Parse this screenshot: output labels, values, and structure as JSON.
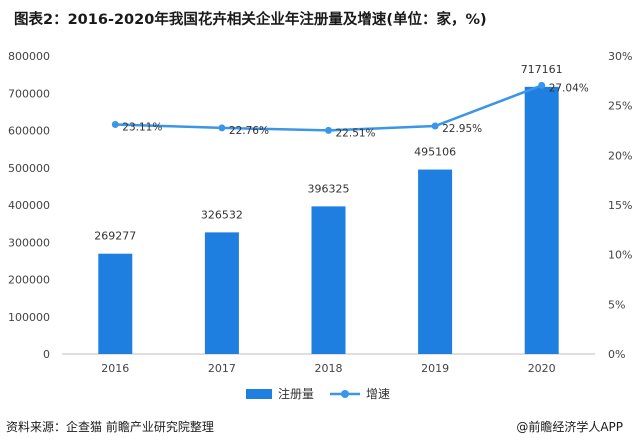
{
  "chart_data": {
    "type": "bar",
    "title": "图表2：2016-2020年我国花卉相关企业年注册量及增速(单位：家，%)",
    "categories": [
      "2016",
      "2017",
      "2018",
      "2019",
      "2020"
    ],
    "series": [
      {
        "name": "注册量",
        "type": "bar",
        "axis": "left",
        "values": [
          269277,
          326532,
          396325,
          495106,
          717161
        ],
        "labels": [
          "269277",
          "326532",
          "396325",
          "495106",
          "717161"
        ],
        "color": "#1f7fe0"
      },
      {
        "name": "增速",
        "type": "line",
        "axis": "right",
        "values": [
          23.11,
          22.76,
          22.51,
          22.95,
          27.04
        ],
        "labels": [
          "23.11%",
          "22.76%",
          "22.51%",
          "22.95%",
          "27.04%"
        ],
        "color": "#3a96e8"
      }
    ],
    "y_left": {
      "min": 0,
      "max": 800000,
      "ticks": [
        "0",
        "100000",
        "200000",
        "300000",
        "400000",
        "500000",
        "600000",
        "700000",
        "800000"
      ]
    },
    "y_right": {
      "min": 0,
      "max": 30,
      "ticks": [
        "0%",
        "5%",
        "10%",
        "15%",
        "20%",
        "25%",
        "30%"
      ]
    },
    "grid": false,
    "legend_position": "bottom"
  },
  "footer": {
    "source": "资料来源：企查猫 前瞻产业研究院整理",
    "brand": "@前瞻经济学人APP"
  }
}
